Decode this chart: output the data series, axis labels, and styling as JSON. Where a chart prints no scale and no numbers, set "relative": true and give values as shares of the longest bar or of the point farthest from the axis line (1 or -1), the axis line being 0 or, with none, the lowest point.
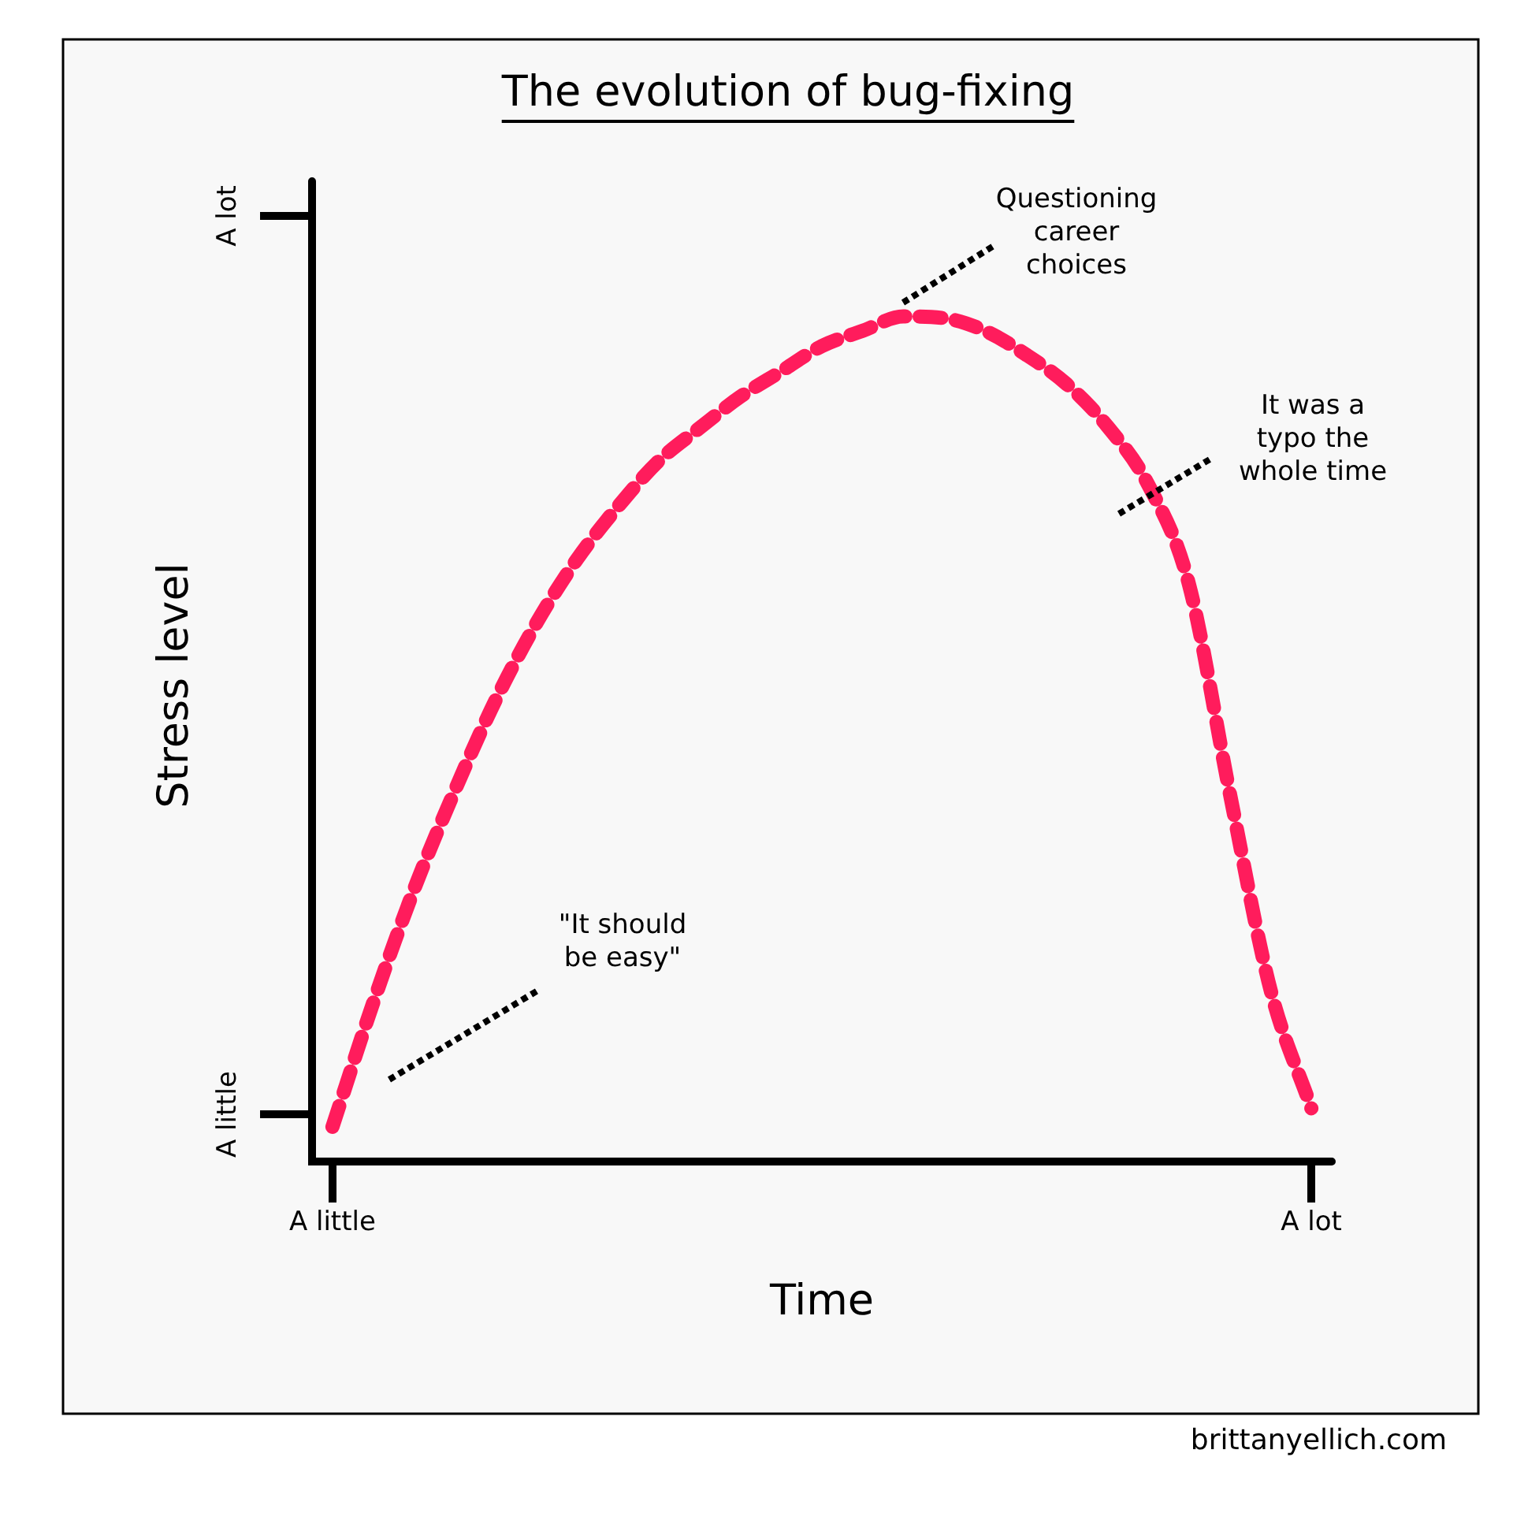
{
  "chart_data": {
    "type": "line",
    "title": "The evolution of bug-fixing",
    "xlabel": "Time",
    "ylabel": "Stress level",
    "relative": true,
    "grid": false,
    "legend": false,
    "marker": "none",
    "line_style": "dashed",
    "categories": [
      "A little",
      null,
      null,
      null,
      null,
      null,
      null,
      null,
      null,
      null,
      null,
      null,
      null,
      null,
      null,
      null,
      null,
      null,
      null,
      null,
      null,
      null,
      null,
      null,
      "A lot"
    ],
    "series": [
      {
        "color": "#ff1c5c",
        "values": [
          0.041,
          0.188,
          0.322,
          0.439,
          0.546,
          0.637,
          0.713,
          0.775,
          0.829,
          0.868,
          0.905,
          0.935,
          0.965,
          0.983,
          1,
          0.998,
          0.983,
          0.955,
          0.92,
          0.87,
          0.801,
          0.683,
          0.436,
          0.203,
          0.063
        ]
      }
    ],
    "annotations": [
      "A little",
      "A lot",
      "\"It should\nbe easy\"",
      "Questioning\ncareer\nchoices",
      "It was a\ntypo the\nwhole time",
      "brittanyellich.com"
    ]
  }
}
